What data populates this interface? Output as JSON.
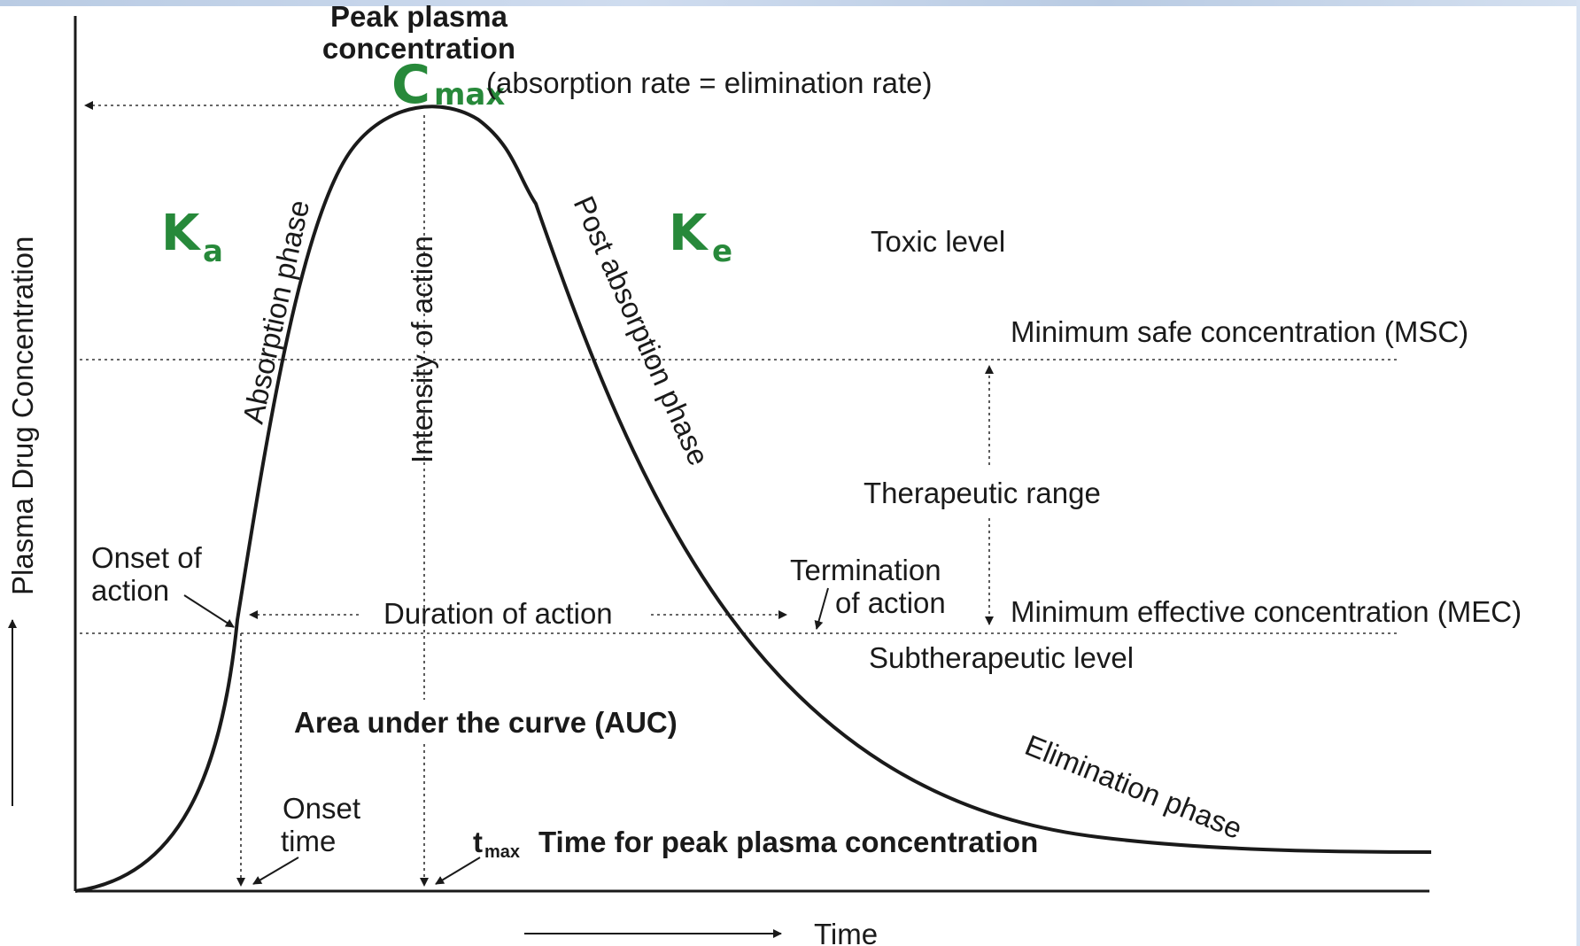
{
  "diagram": {
    "peak": {
      "line1": "Peak plasma",
      "line2": "concentration"
    },
    "cmax": {
      "main": "C",
      "sub": "max",
      "note": "(absorption rate = elimination rate)"
    },
    "ka": {
      "main": "K",
      "sub": "a"
    },
    "ke": {
      "main": "K",
      "sub": "e"
    },
    "absorption_phase": "Absorption phase",
    "intensity": "Intensity of action",
    "post_absorption": "Post absorption phase",
    "toxic": "Toxic level",
    "msc": "Minimum safe concentration (MSC)",
    "therapeutic": "Therapeutic range",
    "termination": {
      "line1": "Termination",
      "line2": "of action"
    },
    "mec": "Minimum effective concentration (MEC)",
    "subtherapeutic": "Subtherapeutic level",
    "onset_action": {
      "line1": "Onset of",
      "line2": "action"
    },
    "duration": "Duration of action",
    "auc": "Area under the curve (AUC)",
    "elimination": "Elimination phase",
    "onset_time": {
      "line1": "Onset",
      "line2": "time"
    },
    "tmax": {
      "main": "t",
      "sub": "max",
      "label": "Time for peak plasma concentration"
    },
    "y_axis": "Plasma Drug Concentration",
    "x_axis": "Time"
  }
}
